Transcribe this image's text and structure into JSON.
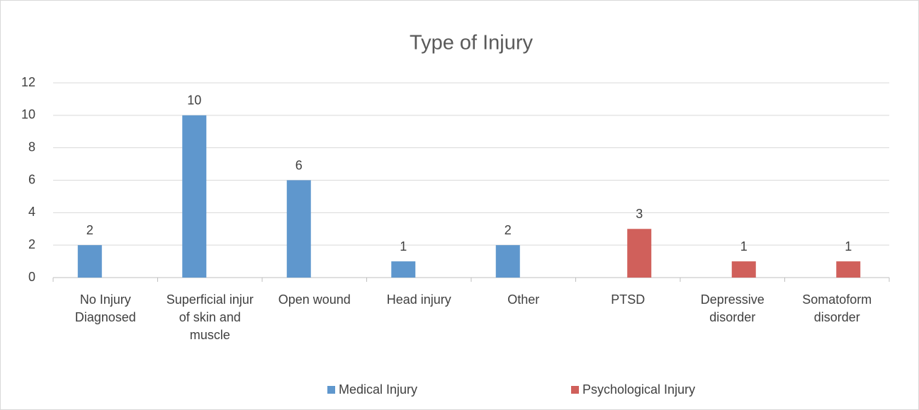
{
  "chart_data": {
    "type": "bar",
    "title": "Type of Injury",
    "categories": [
      "No Injury Diagnosed",
      "Superficial injur of skin and muscle",
      "Open wound",
      "Head injury",
      "Other",
      "PTSD",
      "Depressive disorder",
      "Somatoform disorder"
    ],
    "series": [
      {
        "name": "Medical Injury",
        "color": "#5f97cd",
        "values": [
          2,
          10,
          6,
          1,
          2,
          null,
          null,
          null
        ]
      },
      {
        "name": "Psychological Injury",
        "color": "#d0605b",
        "values": [
          null,
          null,
          null,
          null,
          null,
          3,
          1,
          1
        ]
      }
    ],
    "ylim": [
      0,
      12
    ],
    "yticks": [
      0,
      2,
      4,
      6,
      8,
      10,
      12
    ],
    "grid": true,
    "legend": "bottom"
  }
}
